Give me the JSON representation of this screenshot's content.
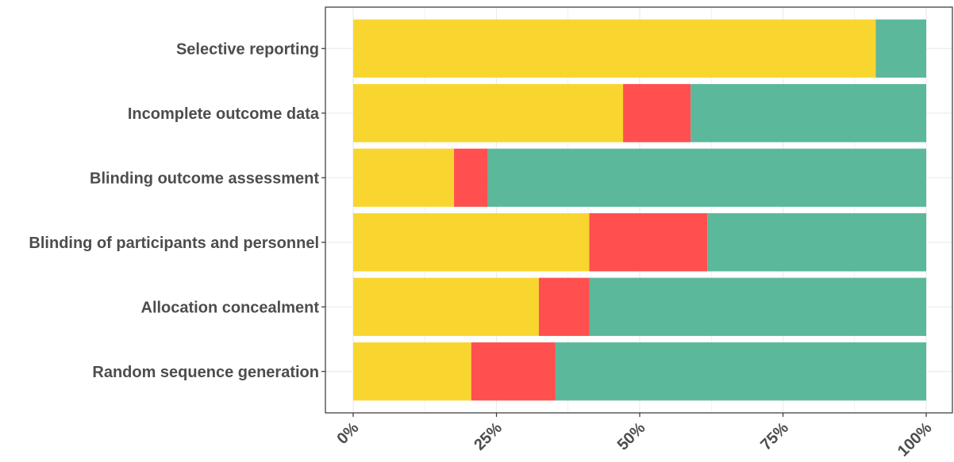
{
  "chart_data": {
    "type": "bar",
    "orientation": "horizontal",
    "stacked": true,
    "categories": [
      "Random sequence generation",
      "Allocation concealment",
      "Blinding of participants and personnel",
      "Blinding outcome assessment",
      "Incomplete outcome data",
      "Selective reporting"
    ],
    "series": [
      {
        "color": "#F9D52F",
        "values": [
          20.6,
          32.4,
          41.2,
          17.6,
          47.1,
          91.2
        ]
      },
      {
        "color": "#FF4F4F",
        "values": [
          14.7,
          8.8,
          20.6,
          5.9,
          11.8,
          0
        ]
      },
      {
        "color": "#5BB89A",
        "values": [
          64.7,
          58.8,
          38.2,
          76.5,
          41.1,
          8.8
        ]
      }
    ],
    "xticks": [
      "0%",
      "25%",
      "50%",
      "75%",
      "100%"
    ],
    "xlim": [
      0,
      100
    ],
    "grid": true,
    "title": "",
    "xlabel": "",
    "ylabel": ""
  }
}
